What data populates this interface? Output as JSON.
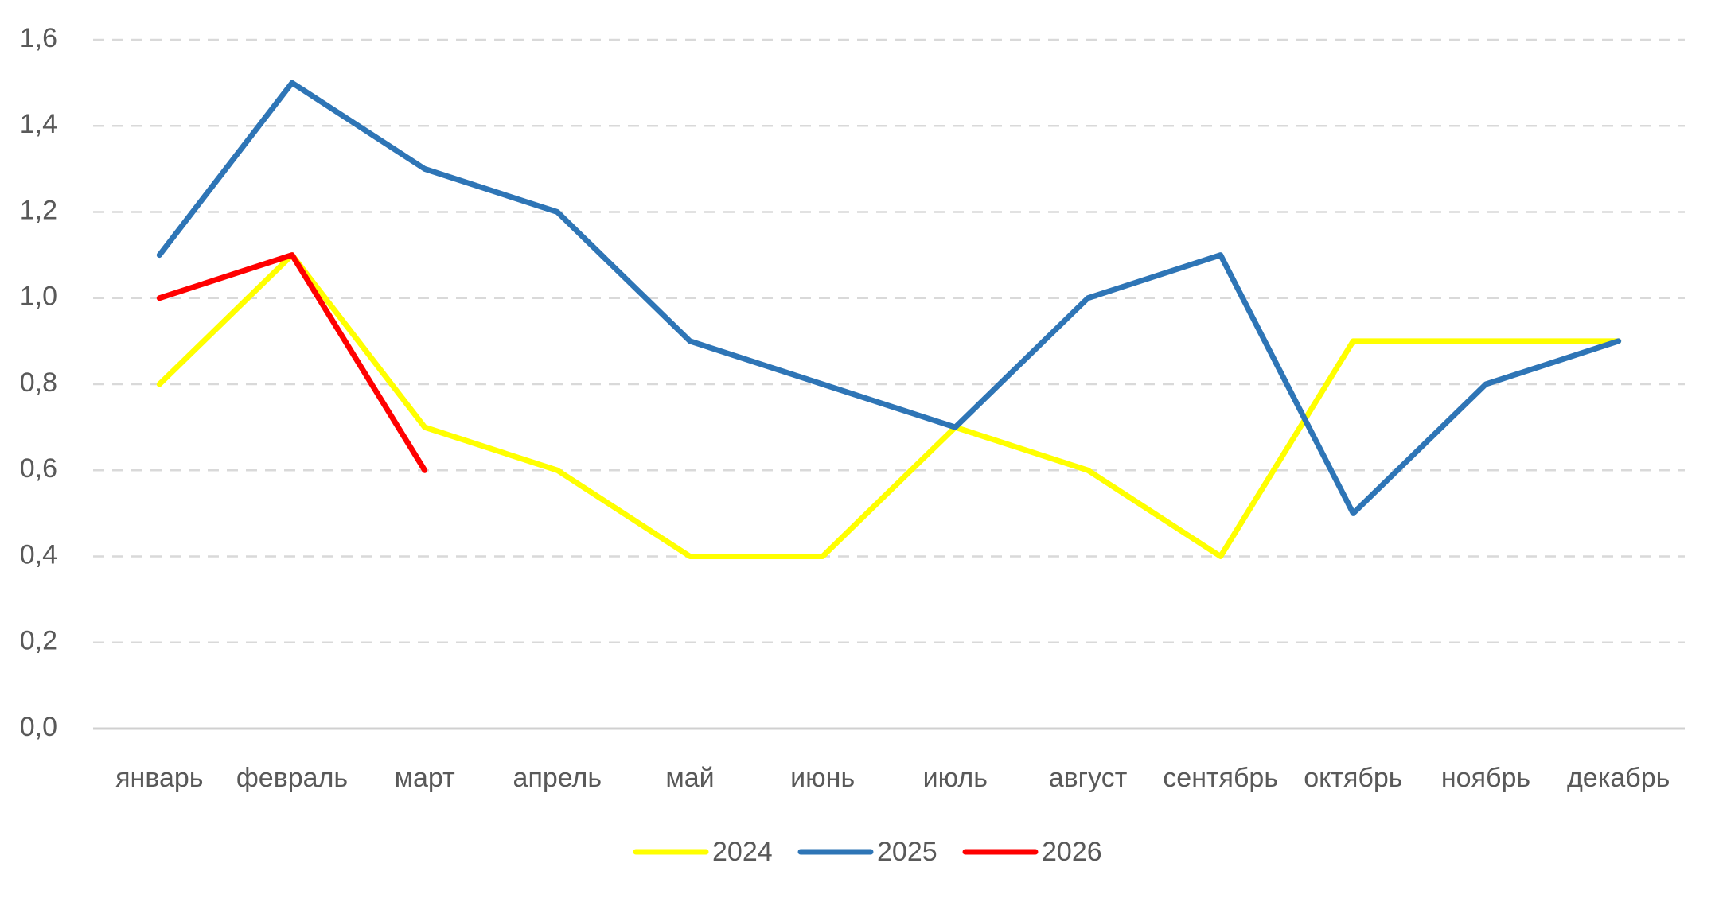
{
  "chart_data": {
    "type": "line",
    "categories": [
      "январь",
      "февраль",
      "март",
      "апрель",
      "май",
      "июнь",
      "июль",
      "август",
      "сентябрь",
      "октябрь",
      "ноябрь",
      "декабрь"
    ],
    "series": [
      {
        "name": "2024",
        "color": "#ffff00",
        "values": [
          0.8,
          1.1,
          0.7,
          0.6,
          0.4,
          0.4,
          0.7,
          0.6,
          0.4,
          0.9,
          0.9,
          0.9
        ]
      },
      {
        "name": "2025",
        "color": "#2e75b6",
        "values": [
          1.1,
          1.5,
          1.3,
          1.2,
          0.9,
          0.8,
          0.7,
          1.0,
          1.1,
          0.5,
          0.8,
          0.9
        ]
      },
      {
        "name": "2026",
        "color": "#ff0000",
        "values": [
          1.0,
          1.1,
          0.6,
          null,
          null,
          null,
          null,
          null,
          null,
          null,
          null,
          null
        ]
      }
    ],
    "ylim": [
      0,
      1.6
    ],
    "yticks": [
      {
        "value": 0,
        "label": "0,0"
      },
      {
        "value": 0.2,
        "label": "0,2"
      },
      {
        "value": 0.4,
        "label": "0,4"
      },
      {
        "value": 0.6,
        "label": "0,6"
      },
      {
        "value": 0.8,
        "label": "0,8"
      },
      {
        "value": 1.0,
        "label": "1,0"
      },
      {
        "value": 1.2,
        "label": "1,2"
      },
      {
        "value": 1.4,
        "label": "1,4"
      },
      {
        "value": 1.6,
        "label": "1,6"
      }
    ],
    "grid": true,
    "legend": "bottom"
  }
}
